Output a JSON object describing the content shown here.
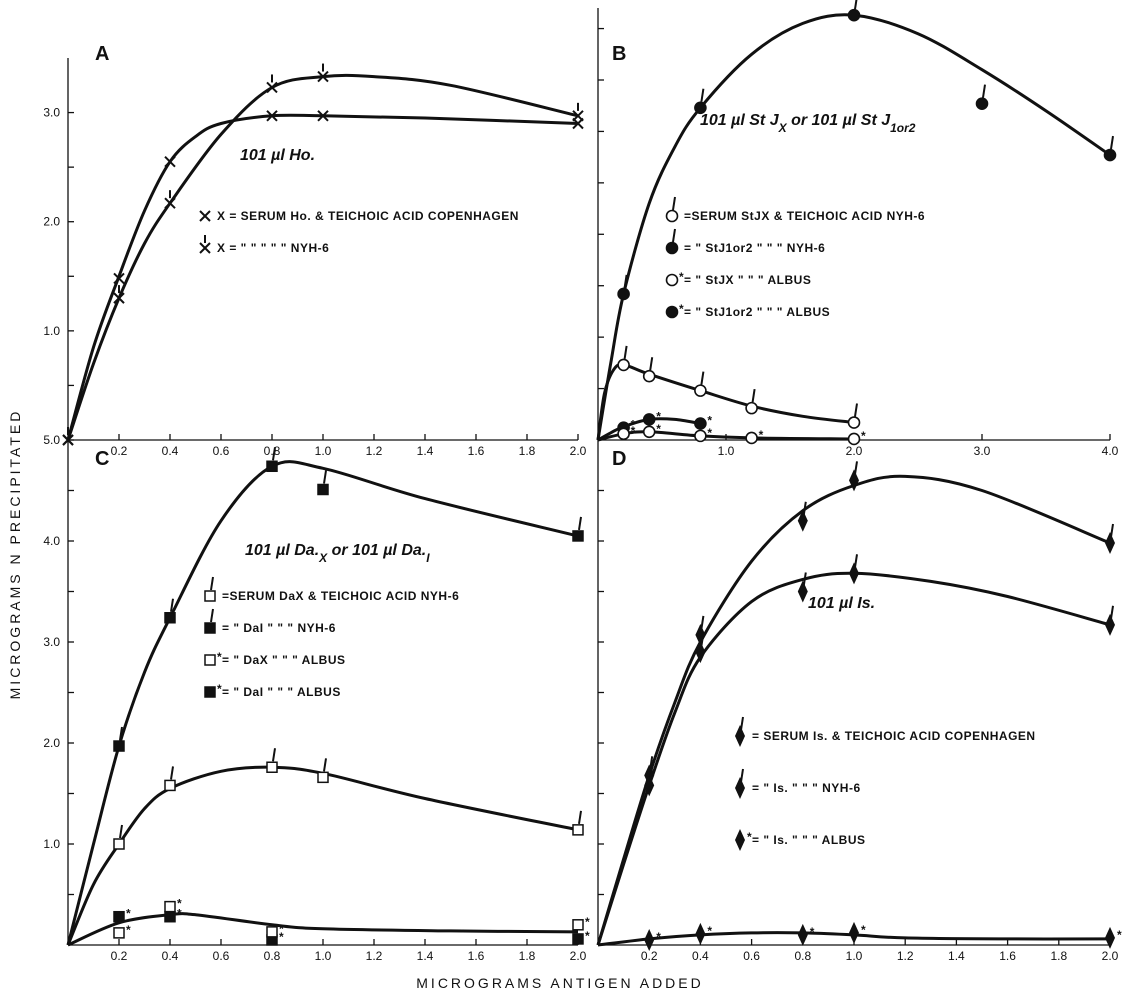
{
  "figure": {
    "ylabel": "MICROGRAMS N PRECIPITATED",
    "xlabel": "MICROGRAMS ANTIGEN ADDED",
    "colors": {
      "ink": "#111111",
      "background": "#ffffff"
    }
  },
  "chart_data": [
    {
      "panel": "A",
      "type": "line",
      "caption": "101 µl Ho.",
      "xlim": [
        0,
        2.0
      ],
      "ylim": [
        0,
        3.5
      ],
      "x_ticks": [
        {
          "v": 0.2,
          "label": "0.2"
        },
        {
          "v": 0.4,
          "label": "0.4"
        },
        {
          "v": 0.6,
          "label": "0.6"
        },
        {
          "v": 0.8,
          "label": "0.8"
        },
        {
          "v": 1.0,
          "label": "1.0"
        },
        {
          "v": 1.2,
          "label": "1.2"
        },
        {
          "v": 1.4,
          "label": "1.4"
        },
        {
          "v": 1.6,
          "label": "1.6"
        },
        {
          "v": 1.8,
          "label": "1.8"
        },
        {
          "v": 2.0,
          "label": "2.0"
        }
      ],
      "y_ticks": [
        {
          "v": 0.5,
          "label": ""
        },
        {
          "v": 1.0,
          "label": "1.0"
        },
        {
          "v": 1.5,
          "label": ""
        },
        {
          "v": 2.0,
          "label": "2.0"
        },
        {
          "v": 2.5,
          "label": ""
        },
        {
          "v": 3.0,
          "label": "3.0"
        }
      ],
      "legend": [
        {
          "marker": "x",
          "text": "X = SERUM Ho. & TEICHOIC ACID COPENHAGEN"
        },
        {
          "marker": "x-tick",
          "text": "X = \"   \"   \"   \"   \"   NYH-6"
        }
      ],
      "series": [
        {
          "marker": "x",
          "x": [
            0,
            0.2,
            0.4,
            0.8,
            1.0,
            2.0
          ],
          "y": [
            0,
            1.48,
            2.55,
            2.97,
            2.97,
            2.9
          ],
          "curve": [
            [
              0,
              0
            ],
            [
              0.1,
              0.85
            ],
            [
              0.2,
              1.5
            ],
            [
              0.3,
              2.1
            ],
            [
              0.4,
              2.55
            ],
            [
              0.5,
              2.78
            ],
            [
              0.6,
              2.9
            ],
            [
              0.8,
              2.97
            ],
            [
              1.0,
              2.97
            ],
            [
              1.4,
              2.95
            ],
            [
              2.0,
              2.9
            ]
          ]
        },
        {
          "marker": "x-tick",
          "x": [
            0,
            0.2,
            0.4,
            0.8,
            1.0,
            2.0
          ],
          "y": [
            0,
            1.3,
            2.17,
            3.23,
            3.33,
            2.97
          ],
          "curve": [
            [
              0,
              0
            ],
            [
              0.1,
              0.7
            ],
            [
              0.2,
              1.3
            ],
            [
              0.3,
              1.8
            ],
            [
              0.4,
              2.17
            ],
            [
              0.6,
              2.8
            ],
            [
              0.8,
              3.23
            ],
            [
              1.0,
              3.33
            ],
            [
              1.2,
              3.33
            ],
            [
              1.5,
              3.25
            ],
            [
              2.0,
              2.97
            ]
          ]
        }
      ]
    },
    {
      "panel": "B",
      "type": "line",
      "caption": "101 µl St J X or 101 µl St J 1or2",
      "xlim": [
        0,
        4.0
      ],
      "ylim": [
        0,
        4.2
      ],
      "x_ticks": [
        {
          "v": 1.0,
          "label": "1.0"
        },
        {
          "v": 2.0,
          "label": "2.0"
        },
        {
          "v": 3.0,
          "label": "3.0"
        },
        {
          "v": 4.0,
          "label": "4.0"
        }
      ],
      "y_ticks": [
        {
          "v": 0.5,
          "label": ""
        },
        {
          "v": 1.0,
          "label": ""
        },
        {
          "v": 1.5,
          "label": ""
        },
        {
          "v": 2.0,
          "label": ""
        },
        {
          "v": 2.5,
          "label": ""
        },
        {
          "v": 3.0,
          "label": ""
        },
        {
          "v": 3.5,
          "label": ""
        },
        {
          "v": 4.0,
          "label": ""
        }
      ],
      "legend": [
        {
          "marker": "circle-open-tick",
          "text": "=SERUM StJX & TEICHOIC ACID  NYH-6"
        },
        {
          "marker": "circle-filled-tick",
          "text": "=   \"   StJ1or2 \"   \"   \"   NYH-6"
        },
        {
          "marker": "circle-open-star",
          "text": "=   \"   StJX   \"   \"   \"   ALBUS"
        },
        {
          "marker": "circle-filled-star",
          "text": "=   \"   StJ1or2 \"   \"   \"   ALBUS"
        }
      ],
      "series": [
        {
          "marker": "circle-filled-tick",
          "x": [
            0.2,
            0.8,
            2.0,
            3.0,
            4.0
          ],
          "y": [
            1.42,
            3.23,
            4.13,
            3.27,
            2.77
          ],
          "curve": [
            [
              0,
              0
            ],
            [
              0.1,
              0.75
            ],
            [
              0.2,
              1.42
            ],
            [
              0.4,
              2.3
            ],
            [
              0.6,
              2.85
            ],
            [
              0.8,
              3.23
            ],
            [
              1.2,
              3.75
            ],
            [
              1.6,
              4.05
            ],
            [
              2.0,
              4.13
            ],
            [
              2.5,
              3.95
            ],
            [
              3.0,
              3.6
            ],
            [
              3.5,
              3.2
            ],
            [
              4.0,
              2.77
            ]
          ]
        },
        {
          "marker": "circle-open-tick",
          "x": [
            0.2,
            0.4,
            0.8,
            1.2,
            2.0
          ],
          "y": [
            0.73,
            0.62,
            0.48,
            0.31,
            0.17
          ],
          "curve": [
            [
              0,
              0
            ],
            [
              0.05,
              0.45
            ],
            [
              0.12,
              0.68
            ],
            [
              0.2,
              0.73
            ],
            [
              0.4,
              0.64
            ],
            [
              0.8,
              0.48
            ],
            [
              1.2,
              0.33
            ],
            [
              1.6,
              0.23
            ],
            [
              2.0,
              0.17
            ]
          ]
        },
        {
          "marker": "circle-filled-star",
          "x": [
            0.2,
            0.4,
            0.8
          ],
          "y": [
            0.12,
            0.2,
            0.16
          ],
          "curve": [
            [
              0,
              0
            ],
            [
              0.1,
              0.07
            ],
            [
              0.2,
              0.13
            ],
            [
              0.4,
              0.2
            ],
            [
              0.6,
              0.2
            ],
            [
              0.8,
              0.16
            ]
          ]
        },
        {
          "marker": "circle-open-star",
          "x": [
            0.2,
            0.4,
            0.8,
            1.2,
            2.0
          ],
          "y": [
            0.06,
            0.08,
            0.04,
            0.02,
            0.01
          ],
          "curve": [
            [
              0,
              0
            ],
            [
              0.2,
              0.06
            ],
            [
              0.4,
              0.08
            ],
            [
              0.8,
              0.04
            ],
            [
              1.2,
              0.02
            ],
            [
              2.0,
              0.01
            ]
          ]
        }
      ]
    },
    {
      "panel": "C",
      "type": "line",
      "caption": "101 µl Da X or 101 µl Da I",
      "xlim": [
        0,
        2.0
      ],
      "ylim": [
        0,
        5.0
      ],
      "x_ticks": [
        {
          "v": 0.2,
          "label": "0.2"
        },
        {
          "v": 0.4,
          "label": "0.4"
        },
        {
          "v": 0.6,
          "label": "0.6"
        },
        {
          "v": 0.8,
          "label": "0.8"
        },
        {
          "v": 1.0,
          "label": "1.0"
        },
        {
          "v": 1.2,
          "label": "1.2"
        },
        {
          "v": 1.4,
          "label": "1.4"
        },
        {
          "v": 1.6,
          "label": "1.6"
        },
        {
          "v": 1.8,
          "label": "1.8"
        },
        {
          "v": 2.0,
          "label": "2.0"
        }
      ],
      "y_ticks": [
        {
          "v": 0.5,
          "label": ""
        },
        {
          "v": 1.0,
          "label": "1.0"
        },
        {
          "v": 1.5,
          "label": ""
        },
        {
          "v": 2.0,
          "label": "2.0"
        },
        {
          "v": 2.5,
          "label": ""
        },
        {
          "v": 3.0,
          "label": "3.0"
        },
        {
          "v": 3.5,
          "label": ""
        },
        {
          "v": 4.0,
          "label": "4.0"
        },
        {
          "v": 4.5,
          "label": ""
        },
        {
          "v": 5.0,
          "label": "5.0"
        }
      ],
      "legend": [
        {
          "marker": "square-open-tick",
          "text": "=SERUM DaX & TEICHOIC ACID  NYH-6"
        },
        {
          "marker": "square-filled-tick",
          "text": "=   \"   DaI   \"   \"   \"   NYH-6"
        },
        {
          "marker": "square-open-star",
          "text": "=   \"   DaX   \"   \"   \"   ALBUS"
        },
        {
          "marker": "square-filled-star",
          "text": "=   \"   DaI   \"   \"   \"   ALBUS"
        }
      ],
      "series": [
        {
          "marker": "square-filled-tick",
          "x": [
            0.2,
            0.4,
            0.8,
            1.0,
            2.0
          ],
          "y": [
            1.97,
            3.24,
            4.74,
            4.51,
            4.05
          ],
          "curve": [
            [
              0,
              0
            ],
            [
              0.1,
              1.0
            ],
            [
              0.2,
              1.97
            ],
            [
              0.3,
              2.7
            ],
            [
              0.4,
              3.24
            ],
            [
              0.6,
              4.2
            ],
            [
              0.8,
              4.74
            ],
            [
              1.0,
              4.72
            ],
            [
              1.4,
              4.42
            ],
            [
              2.0,
              4.05
            ]
          ]
        },
        {
          "marker": "square-open-tick",
          "x": [
            0.2,
            0.4,
            0.8,
            1.0,
            2.0
          ],
          "y": [
            1.0,
            1.58,
            1.76,
            1.66,
            1.14
          ],
          "curve": [
            [
              0,
              0
            ],
            [
              0.1,
              0.6
            ],
            [
              0.2,
              1.0
            ],
            [
              0.3,
              1.35
            ],
            [
              0.4,
              1.55
            ],
            [
              0.6,
              1.72
            ],
            [
              0.8,
              1.76
            ],
            [
              1.0,
              1.7
            ],
            [
              1.4,
              1.45
            ],
            [
              2.0,
              1.14
            ]
          ]
        },
        {
          "marker": "square-filled-star",
          "x": [
            0.2,
            0.4,
            0.8,
            2.0
          ],
          "y": [
            0.28,
            0.28,
            0.05,
            0.06
          ],
          "curve": []
        },
        {
          "marker": "square-open-star",
          "x": [
            0.2,
            0.4,
            0.8,
            2.0
          ],
          "y": [
            0.12,
            0.38,
            0.13,
            0.2
          ],
          "curve": []
        },
        {
          "marker": "none",
          "x": [],
          "y": [],
          "curve": [
            [
              0,
              0
            ],
            [
              0.2,
              0.22
            ],
            [
              0.4,
              0.3
            ],
            [
              0.5,
              0.3
            ],
            [
              0.8,
              0.2
            ],
            [
              1.0,
              0.16
            ],
            [
              1.5,
              0.14
            ],
            [
              2.0,
              0.13
            ]
          ]
        }
      ]
    },
    {
      "panel": "D",
      "type": "line",
      "caption": "101 µl Is.",
      "xlim": [
        0,
        2.0
      ],
      "ylim": [
        0,
        5.0
      ],
      "x_ticks": [
        {
          "v": 0.2,
          "label": "0.2"
        },
        {
          "v": 0.4,
          "label": "0.4"
        },
        {
          "v": 0.6,
          "label": "0.6"
        },
        {
          "v": 0.8,
          "label": "0.8"
        },
        {
          "v": 1.0,
          "label": "1.0"
        },
        {
          "v": 1.2,
          "label": "1.2"
        },
        {
          "v": 1.4,
          "label": "1.4"
        },
        {
          "v": 1.6,
          "label": "1.6"
        },
        {
          "v": 1.8,
          "label": "1.8"
        },
        {
          "v": 2.0,
          "label": "2.0"
        }
      ],
      "y_ticks": [
        {
          "v": 0.5,
          "label": ""
        },
        {
          "v": 1.0,
          "label": ""
        },
        {
          "v": 1.5,
          "label": ""
        },
        {
          "v": 2.0,
          "label": ""
        },
        {
          "v": 2.5,
          "label": ""
        },
        {
          "v": 3.0,
          "label": ""
        },
        {
          "v": 3.5,
          "label": ""
        },
        {
          "v": 4.0,
          "label": ""
        },
        {
          "v": 4.5,
          "label": ""
        }
      ],
      "legend": [
        {
          "marker": "diamond-tick",
          "text": "= SERUM Is. & TEICHOIC ACID COPENHAGEN"
        },
        {
          "marker": "diamond-tick",
          "text": "=   \"   Is.   \"   \"   \"   NYH-6"
        },
        {
          "marker": "diamond-star",
          "text": "=   \"   Is.   \"   \"   \"   ALBUS"
        }
      ],
      "series": [
        {
          "marker": "diamond-tick",
          "x": [
            0.2,
            0.4,
            0.8,
            1.0,
            2.0
          ],
          "y": [
            1.68,
            3.07,
            4.2,
            4.6,
            3.98
          ],
          "curve": [
            [
              0,
              0
            ],
            [
              0.1,
              0.85
            ],
            [
              0.2,
              1.68
            ],
            [
              0.3,
              2.4
            ],
            [
              0.4,
              3.0
            ],
            [
              0.6,
              3.8
            ],
            [
              0.8,
              4.3
            ],
            [
              1.0,
              4.55
            ],
            [
              1.2,
              4.64
            ],
            [
              1.5,
              4.5
            ],
            [
              2.0,
              3.98
            ]
          ]
        },
        {
          "marker": "diamond-tick",
          "x": [
            0.2,
            0.4,
            0.8,
            1.0,
            2.0
          ],
          "y": [
            1.58,
            2.9,
            3.5,
            3.68,
            3.17
          ],
          "curve": [
            [
              0,
              0
            ],
            [
              0.1,
              0.8
            ],
            [
              0.2,
              1.58
            ],
            [
              0.3,
              2.3
            ],
            [
              0.4,
              2.85
            ],
            [
              0.6,
              3.4
            ],
            [
              0.8,
              3.62
            ],
            [
              1.0,
              3.68
            ],
            [
              1.3,
              3.6
            ],
            [
              1.6,
              3.45
            ],
            [
              2.0,
              3.17
            ]
          ]
        },
        {
          "marker": "diamond-star",
          "x": [
            0.2,
            0.4,
            0.8,
            1.0,
            2.0
          ],
          "y": [
            0.05,
            0.11,
            0.1,
            0.12,
            0.07
          ],
          "curve": [
            [
              0,
              0
            ],
            [
              0.2,
              0.06
            ],
            [
              0.4,
              0.1
            ],
            [
              0.6,
              0.12
            ],
            [
              0.8,
              0.12
            ],
            [
              1.0,
              0.1
            ],
            [
              1.2,
              0.07
            ],
            [
              1.6,
              0.06
            ],
            [
              2.0,
              0.06
            ]
          ]
        }
      ]
    }
  ]
}
